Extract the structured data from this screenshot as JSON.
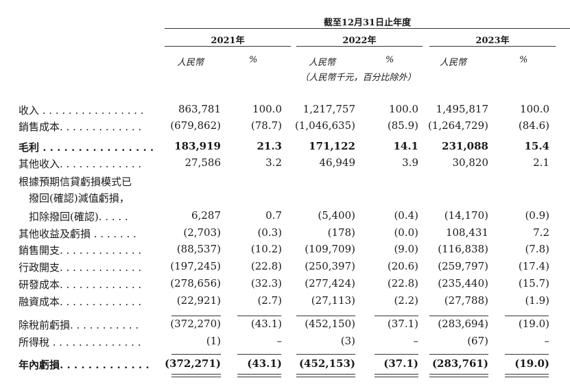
{
  "header": {
    "period": "截至12月31日止年度",
    "years": [
      "2021年",
      "2022年",
      "2023年"
    ],
    "currency_label": "人民幣",
    "percent_label": "%",
    "unit_note": "（人民幣千元，百分比除外）"
  },
  "rows": [
    {
      "label": "收入 . . . . . . . . . . . . . . . .",
      "bold": false,
      "values": [
        "863,781",
        "100.0",
        "1,217,757",
        "100.0",
        "1,495,817",
        "100.0"
      ]
    },
    {
      "label": "銷售成本. . . . . . . . . . . . .",
      "bold": false,
      "values": [
        "(679,862)",
        "(78.7)",
        "(1,046,635)",
        "(85.9)",
        "(1,264,729)",
        "(84.6)"
      ]
    },
    {
      "label": "毛利 . . . . . . . . . . . . . . . .",
      "bold": true,
      "values": [
        "183,919",
        "21.3",
        "171,122",
        "14.1",
        "231,088",
        "15.4"
      ]
    },
    {
      "label": "其他收入. . . . . . . . . . . . .",
      "bold": false,
      "values": [
        "27,586",
        "3.2",
        "46,949",
        "3.9",
        "30,820",
        "2.1"
      ]
    },
    {
      "label": "根據預期信貸虧損模式已",
      "bold": false,
      "values": [
        "",
        "",
        "",
        "",
        "",
        ""
      ]
    },
    {
      "label": "　撥回(確認)減值虧損，",
      "bold": false,
      "values": [
        "",
        "",
        "",
        "",
        "",
        ""
      ]
    },
    {
      "label": "　扣除撥回(確認). . . . .",
      "bold": false,
      "values": [
        "6,287",
        "0.7",
        "(5,400)",
        "(0.4)",
        "(14,170)",
        "(0.9)"
      ]
    },
    {
      "label": "其他收益及虧損 . . . . . . .",
      "bold": false,
      "values": [
        "(2,703)",
        "(0.3)",
        "(178)",
        "(0.0)",
        "108,431",
        "7.2"
      ]
    },
    {
      "label": "銷售開支. . . . . . . . . . . . .",
      "bold": false,
      "values": [
        "(88,537)",
        "(10.2)",
        "(109,709)",
        "(9.0)",
        "(116,838)",
        "(7.8)"
      ]
    },
    {
      "label": "行政開支. . . . . . . . . . . . .",
      "bold": false,
      "values": [
        "(197,245)",
        "(22.8)",
        "(250,397)",
        "(20.6)",
        "(259,797)",
        "(17.4)"
      ]
    },
    {
      "label": "研發成本. . . . . . . . . . . . .",
      "bold": false,
      "values": [
        "(278,656)",
        "(32.3)",
        "(277,424)",
        "(22.8)",
        "(235,440)",
        "(15.7)"
      ]
    },
    {
      "label": "融資成本. . . . . . . . . . . . .",
      "bold": false,
      "values": [
        "(22,921)",
        "(2.7)",
        "(27,113)",
        "(2.2)",
        "(27,788)",
        "(1.9)"
      ]
    },
    {
      "label": "除稅前虧損. . . . . . . . . . .",
      "bold": false,
      "values": [
        "(372,270)",
        "(43.1)",
        "(452,150)",
        "(37.1)",
        "(283,694)",
        "(19.0)"
      ]
    },
    {
      "label": "所得稅 . . . . . . . . . . . . . .",
      "bold": false,
      "values": [
        "(1)",
        "–",
        "(3)",
        "–",
        "(67)",
        "–"
      ]
    },
    {
      "label": "年內虧損. . . . . . . . . . . . .",
      "bold": true,
      "values": [
        "(372,271)",
        "(43.1)",
        "(452,153)",
        "(37.1)",
        "(283,761)",
        "(19.0)"
      ]
    }
  ]
}
